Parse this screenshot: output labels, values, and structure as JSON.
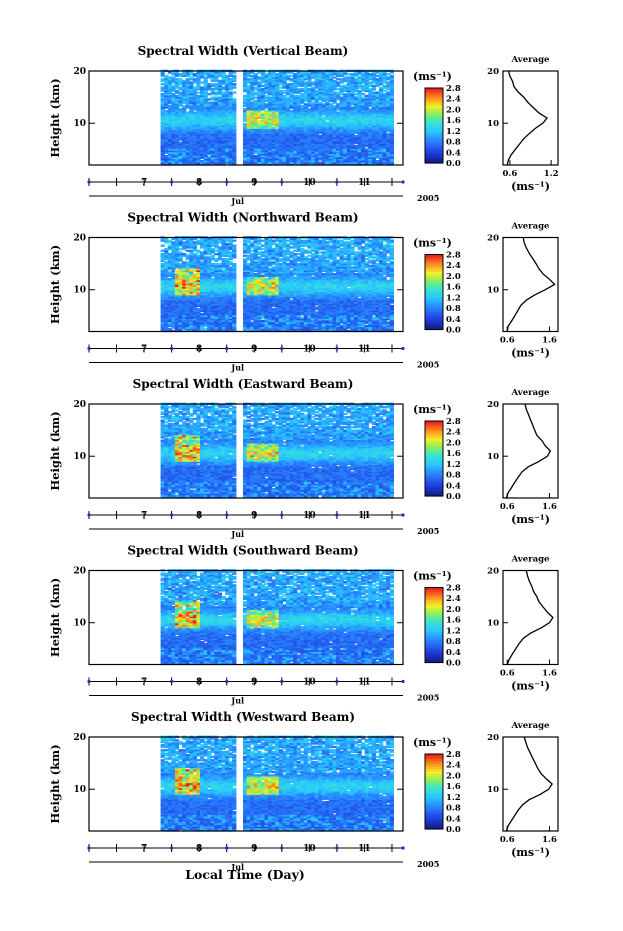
{
  "figure": {
    "xlabel": "Local Time (Day)"
  },
  "chart_data": [
    {
      "type": "heatmap",
      "title": "Spectral Width (Vertical Beam)",
      "ylabel": "Height (km)",
      "x_ticks": [
        "7",
        "8",
        "9",
        "10",
        "11"
      ],
      "y_ticks": [
        "10",
        "20"
      ],
      "ylim": [
        2,
        20
      ],
      "xlim": [
        6.0,
        11.7
      ],
      "month_label": "Jul",
      "year_label": "2005",
      "colorbar": {
        "unit": "(ms⁻¹)",
        "ticks": [
          "2.8",
          "2.4",
          "2.0",
          "1.6",
          "1.2",
          "0.8",
          "0.4",
          "0.0"
        ],
        "min": 0.0,
        "max": 2.8
      },
      "data_start": 7.3,
      "gap": [
        8.65,
        8.75
      ],
      "data_end": 11.5,
      "profile": {
        "title": "Average",
        "xlabel": "(ms⁻¹)",
        "x_ticks": [
          "0.6",
          "1.2"
        ],
        "y_ticks": [
          "10",
          "20"
        ],
        "xlim": [
          0.5,
          1.3
        ],
        "heights": [
          2,
          3,
          4,
          5,
          6,
          7,
          8,
          9,
          10,
          11,
          12,
          13,
          14,
          15,
          16,
          17,
          18,
          19,
          20
        ],
        "values": [
          0.56,
          0.58,
          0.62,
          0.68,
          0.74,
          0.8,
          0.88,
          0.97,
          1.08,
          1.14,
          1.02,
          0.94,
          0.86,
          0.8,
          0.72,
          0.66,
          0.64,
          0.6,
          0.58
        ]
      }
    },
    {
      "type": "heatmap",
      "title": "Spectral Width (Northward Beam)",
      "ylabel": "Height (km)",
      "x_ticks": [
        "7",
        "8",
        "9",
        "10",
        "11"
      ],
      "y_ticks": [
        "10",
        "20"
      ],
      "ylim": [
        2,
        20
      ],
      "xlim": [
        6.0,
        11.7
      ],
      "month_label": "Jul",
      "year_label": "2005",
      "colorbar": {
        "unit": "(ms⁻¹)",
        "ticks": [
          "2.8",
          "2.4",
          "2.0",
          "1.6",
          "1.2",
          "0.8",
          "0.4",
          "0.0"
        ],
        "min": 0.0,
        "max": 2.8
      },
      "data_start": 7.3,
      "gap": [
        8.65,
        8.75
      ],
      "data_end": 11.5,
      "profile": {
        "title": "Average",
        "xlabel": "(ms⁻¹)",
        "x_ticks": [
          "0.6",
          "1.6"
        ],
        "y_ticks": [
          "10",
          "20"
        ],
        "xlim": [
          0.5,
          1.8
        ],
        "heights": [
          2,
          3,
          4,
          5,
          6,
          7,
          8,
          9,
          10,
          11,
          12,
          13,
          14,
          15,
          16,
          17,
          18,
          19,
          20
        ],
        "values": [
          0.6,
          0.62,
          0.7,
          0.78,
          0.85,
          0.92,
          1.05,
          1.25,
          1.5,
          1.72,
          1.6,
          1.45,
          1.35,
          1.28,
          1.2,
          1.12,
          1.05,
          1.0,
          0.98
        ]
      }
    },
    {
      "type": "heatmap",
      "title": "Spectral Width (Eastward Beam)",
      "ylabel": "Height (km)",
      "x_ticks": [
        "7",
        "8",
        "9",
        "10",
        "11"
      ],
      "y_ticks": [
        "10",
        "20"
      ],
      "ylim": [
        2,
        20
      ],
      "xlim": [
        6.0,
        11.7
      ],
      "month_label": "Jul",
      "year_label": "2005",
      "colorbar": {
        "unit": "(ms⁻¹)",
        "ticks": [
          "2.8",
          "2.4",
          "2.0",
          "1.6",
          "1.2",
          "0.8",
          "0.4",
          "0.0"
        ],
        "min": 0.0,
        "max": 2.8
      },
      "data_start": 7.3,
      "gap": [
        8.65,
        8.75
      ],
      "data_end": 11.5,
      "profile": {
        "title": "Average",
        "xlabel": "(ms⁻¹)",
        "x_ticks": [
          "0.6",
          "1.6"
        ],
        "y_ticks": [
          "10",
          "20"
        ],
        "xlim": [
          0.5,
          1.8
        ],
        "heights": [
          2,
          3,
          4,
          5,
          6,
          7,
          8,
          9,
          10,
          11,
          12,
          13,
          14,
          15,
          16,
          17,
          18,
          19,
          20
        ],
        "values": [
          0.58,
          0.62,
          0.7,
          0.78,
          0.86,
          0.95,
          1.1,
          1.35,
          1.55,
          1.62,
          1.5,
          1.42,
          1.3,
          1.25,
          1.2,
          1.15,
          1.1,
          1.05,
          1.02
        ]
      }
    },
    {
      "type": "heatmap",
      "title": "Spectral Width (Southward Beam)",
      "ylabel": "Height (km)",
      "x_ticks": [
        "7",
        "8",
        "9",
        "10",
        "11"
      ],
      "y_ticks": [
        "10",
        "20"
      ],
      "ylim": [
        2,
        20
      ],
      "xlim": [
        6.0,
        11.7
      ],
      "month_label": "Jul",
      "year_label": "2005",
      "colorbar": {
        "unit": "(ms⁻¹)",
        "ticks": [
          "2.8",
          "2.4",
          "2.0",
          "1.6",
          "1.2",
          "0.8",
          "0.4",
          "0.0"
        ],
        "min": 0.0,
        "max": 2.8
      },
      "data_start": 7.3,
      "gap": [
        8.65,
        8.75
      ],
      "data_end": 11.5,
      "profile": {
        "title": "Average",
        "xlabel": "(ms⁻¹)",
        "x_ticks": [
          "0.6",
          "1.6"
        ],
        "y_ticks": [
          "10",
          "20"
        ],
        "xlim": [
          0.5,
          1.8
        ],
        "heights": [
          2,
          3,
          4,
          5,
          6,
          7,
          8,
          9,
          10,
          11,
          12,
          13,
          14,
          15,
          16,
          17,
          18,
          19,
          20
        ],
        "values": [
          0.6,
          0.65,
          0.72,
          0.8,
          0.88,
          0.98,
          1.15,
          1.4,
          1.6,
          1.68,
          1.55,
          1.45,
          1.35,
          1.3,
          1.22,
          1.18,
          1.12,
          1.08,
          1.05
        ]
      }
    },
    {
      "type": "heatmap",
      "title": "Spectral Width (Westward Beam)",
      "ylabel": "Height (km)",
      "x_ticks": [
        "7",
        "8",
        "9",
        "10",
        "11"
      ],
      "y_ticks": [
        "10",
        "20"
      ],
      "ylim": [
        2,
        20
      ],
      "xlim": [
        6.0,
        11.7
      ],
      "month_label": "Jul",
      "year_label": "2005",
      "colorbar": {
        "unit": "(ms⁻¹)",
        "ticks": [
          "2.8",
          "2.4",
          "2.0",
          "1.6",
          "1.2",
          "0.8",
          "0.4",
          "0.0"
        ],
        "min": 0.0,
        "max": 2.8
      },
      "data_start": 7.3,
      "gap": [
        8.65,
        8.75
      ],
      "data_end": 11.5,
      "profile": {
        "title": "Average",
        "xlabel": "(ms⁻¹)",
        "x_ticks": [
          "0.6",
          "1.6"
        ],
        "y_ticks": [
          "10",
          "20"
        ],
        "xlim": [
          0.5,
          1.8
        ],
        "heights": [
          2,
          3,
          4,
          5,
          6,
          7,
          8,
          9,
          10,
          11,
          12,
          13,
          14,
          15,
          16,
          17,
          18,
          19,
          20
        ],
        "values": [
          0.58,
          0.62,
          0.7,
          0.78,
          0.86,
          0.96,
          1.12,
          1.38,
          1.58,
          1.66,
          1.52,
          1.4,
          1.32,
          1.26,
          1.2,
          1.14,
          1.08,
          1.04,
          1.0
        ]
      }
    }
  ]
}
